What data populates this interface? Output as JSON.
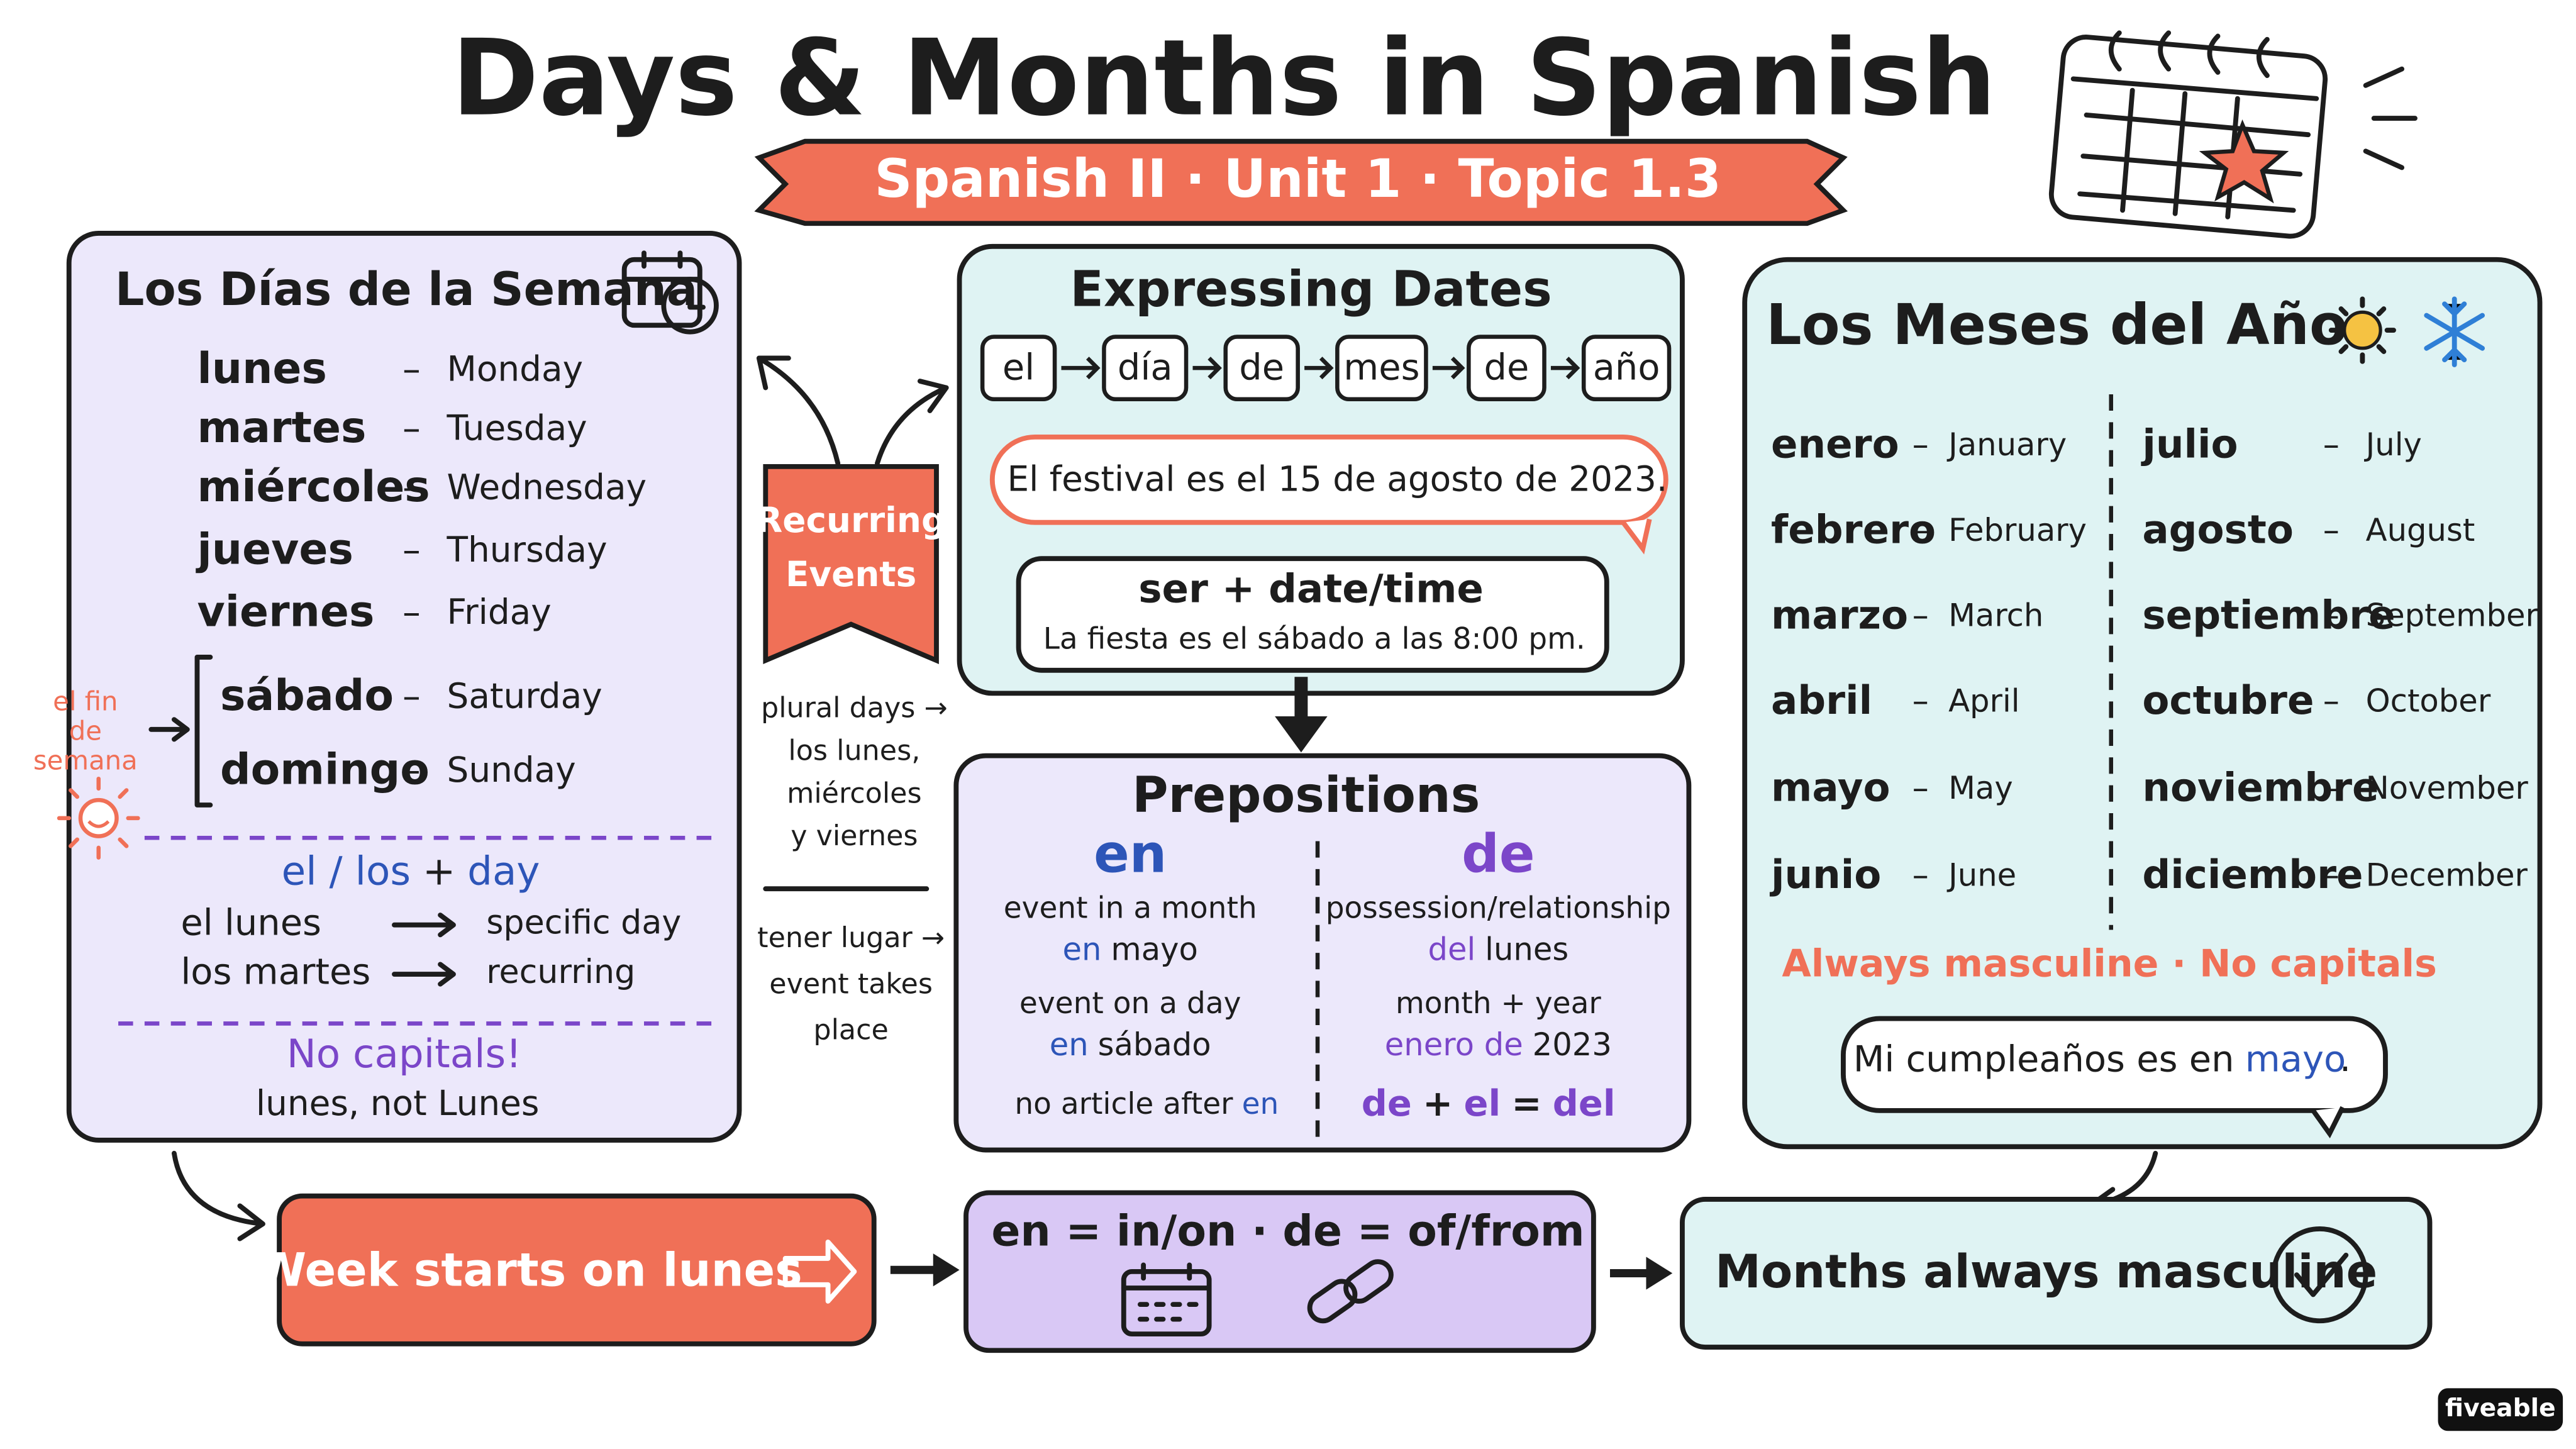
{
  "title": "Days & Months in Spanish",
  "subtitle": "Spanish II · Unit 1 · Topic 1.3",
  "days_panel": {
    "title": "Los Días de la Semana",
    "separator": "–",
    "days": [
      {
        "es": "lunes",
        "en": "Monday"
      },
      {
        "es": "martes",
        "en": "Tuesday"
      },
      {
        "es": "miércoles",
        "en": "Wednesday"
      },
      {
        "es": "jueves",
        "en": "Thursday"
      },
      {
        "es": "viernes",
        "en": "Friday"
      },
      {
        "es": "sábado",
        "en": "Saturday"
      },
      {
        "es": "domingo",
        "en": "Sunday"
      }
    ],
    "weekend_label": [
      "el fin",
      "de",
      "semana"
    ],
    "article_rule": [
      "el / los",
      "+",
      "day"
    ],
    "examples": [
      {
        "es": "el lunes",
        "en": "specific day"
      },
      {
        "es": "los martes",
        "en": "recurring"
      }
    ],
    "no_capitals": "No capitals!",
    "note": "lunes, not Lunes"
  },
  "recurring": {
    "label": [
      "Recurring",
      "Events"
    ],
    "plural_note": [
      "plural days →",
      "los lunes,",
      "miércoles",
      "y viernes"
    ],
    "tener_note": [
      "tener lugar →",
      "event takes",
      "place"
    ]
  },
  "dates_panel": {
    "title": "Expressing Dates",
    "sequence": [
      "el",
      "día",
      "de",
      "mes",
      "de",
      "año"
    ],
    "example": "El festival es el 15 de agosto de 2023.",
    "ser_rule": "ser + date/time",
    "ser_example": "La fiesta es el sábado a las 8:00 pm."
  },
  "prepositions": {
    "title": "Prepositions",
    "en": {
      "heading": "en",
      "uses": [
        {
          "desc": "event in a month",
          "example": [
            "en",
            "mayo"
          ]
        },
        {
          "desc": "event on a day",
          "example": [
            "en",
            "sábado"
          ]
        }
      ],
      "note": [
        "no article after",
        "en"
      ]
    },
    "de": {
      "heading": "de",
      "uses": [
        {
          "desc": "possession/relationship",
          "example": [
            "del",
            "lunes"
          ]
        },
        {
          "desc": "month + year",
          "example": [
            "enero de",
            "2023"
          ]
        }
      ],
      "note": [
        "de",
        "+",
        "el",
        "=",
        "del"
      ]
    }
  },
  "months_panel": {
    "title": "Los Meses del Año",
    "separator": "–",
    "months": [
      {
        "es": "enero",
        "en": "January"
      },
      {
        "es": "febrero",
        "en": "February"
      },
      {
        "es": "marzo",
        "en": "March"
      },
      {
        "es": "abril",
        "en": "April"
      },
      {
        "es": "mayo",
        "en": "May"
      },
      {
        "es": "junio",
        "en": "June"
      },
      {
        "es": "julio",
        "en": "July"
      },
      {
        "es": "agosto",
        "en": "August"
      },
      {
        "es": "septiembre",
        "en": "September"
      },
      {
        "es": "octubre",
        "en": "October"
      },
      {
        "es": "noviembre",
        "en": "November"
      },
      {
        "es": "diciembre",
        "en": "December"
      }
    ],
    "rule": "Always masculine · No capitals",
    "example": [
      "Mi cumpleaños es en",
      "mayo",
      "."
    ]
  },
  "summary": [
    "Week starts on lunes",
    "en = in/on · de = of/from",
    "Months always masculine"
  ],
  "logo": "fiveable"
}
